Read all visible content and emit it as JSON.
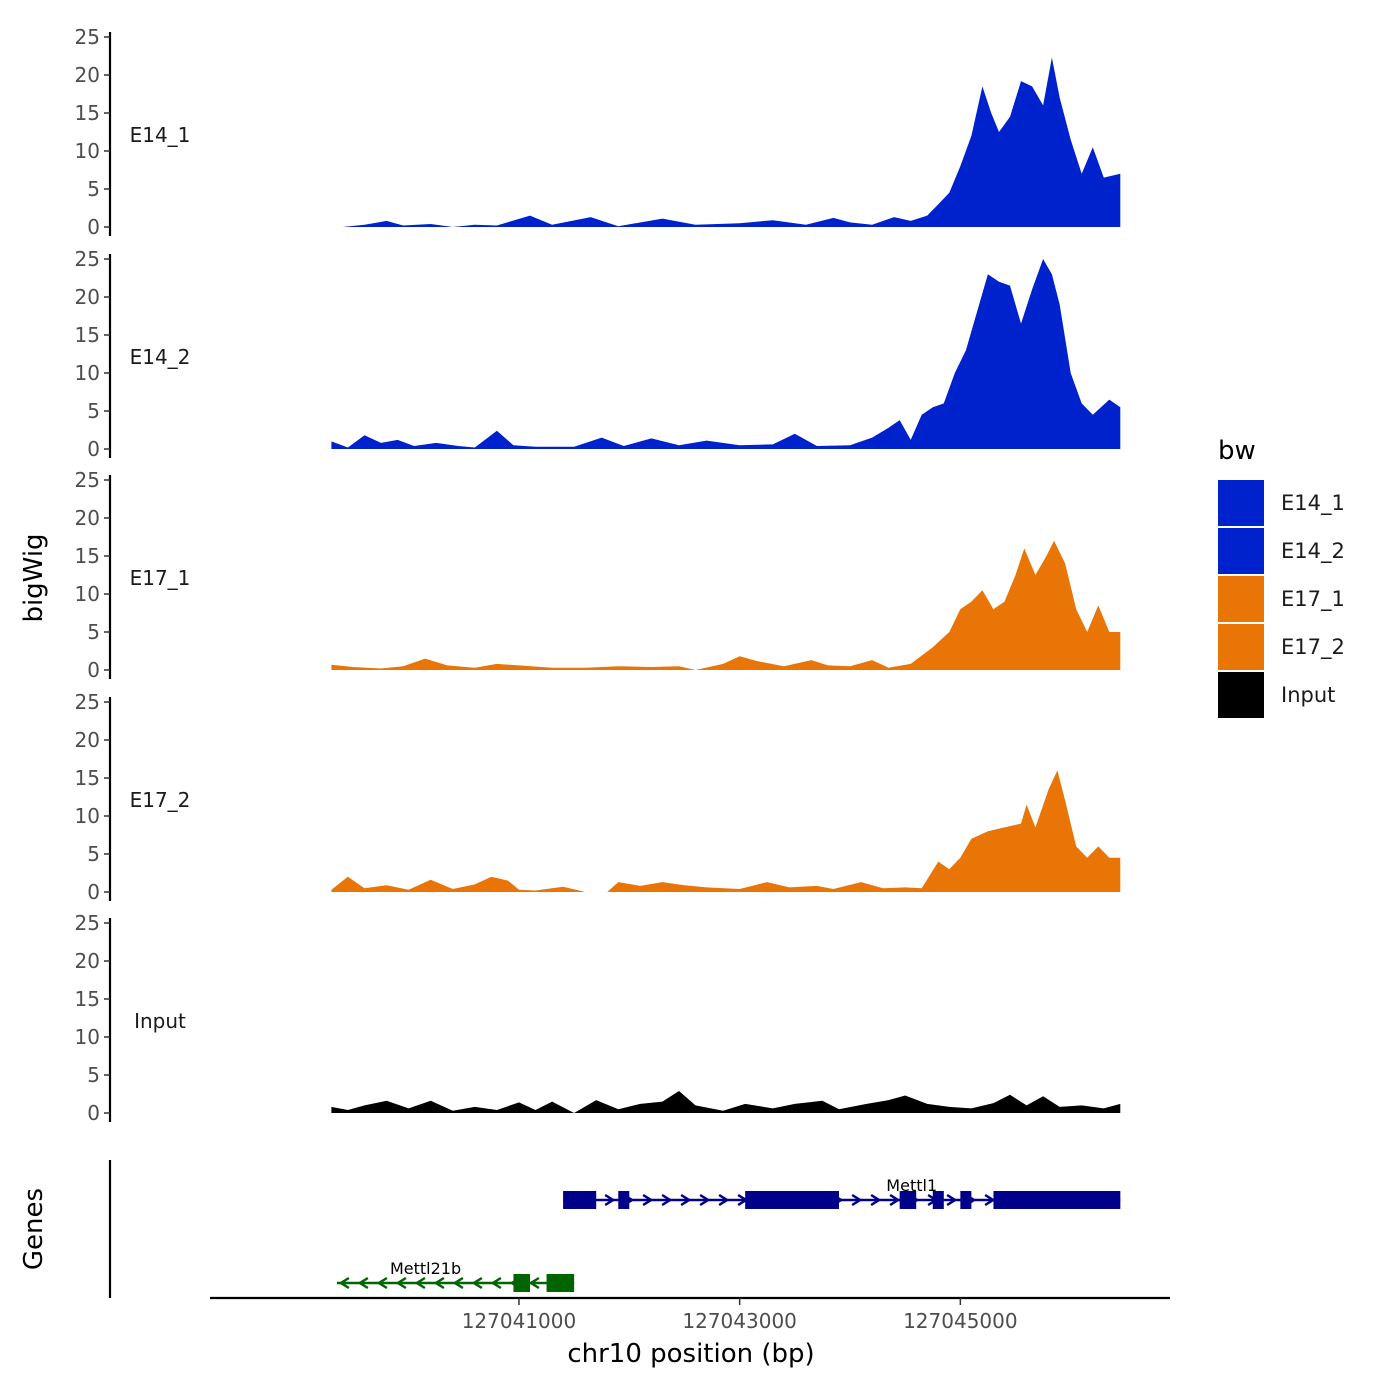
{
  "chart_data": {
    "type": "area",
    "title": "",
    "xlabel": "chr10 position (bp)",
    "ylabel": "bigWig",
    "genes_label": "Genes",
    "xlim": [
      127038200,
      127046900
    ],
    "x_ticks": [
      127041000,
      127043000,
      127045000
    ],
    "x_tick_labels": [
      "127041000",
      "127043000",
      "127045000"
    ],
    "ylim": [
      0,
      25
    ],
    "y_ticks": [
      0,
      5,
      10,
      15,
      20,
      25
    ],
    "y_tick_labels": [
      "0",
      "5",
      "10",
      "15",
      "20",
      "25"
    ],
    "legend": {
      "title": "bw",
      "position": "right",
      "entries": [
        {
          "label": "E14_1",
          "color": "#0022CC"
        },
        {
          "label": "E14_2",
          "color": "#0022CC"
        },
        {
          "label": "E17_1",
          "color": "#E87506"
        },
        {
          "label": "E17_2",
          "color": "#E87506"
        },
        {
          "label": "Input",
          "color": "#000000"
        }
      ]
    },
    "series": [
      {
        "name": "E14_1",
        "color": "#0022CC",
        "points": [
          [
            127039400,
            0
          ],
          [
            127039600,
            0.3
          ],
          [
            127039800,
            0.8
          ],
          [
            127039950,
            0.2
          ],
          [
            127040200,
            0.4
          ],
          [
            127040400,
            0
          ],
          [
            127040600,
            0.3
          ],
          [
            127040800,
            0.2
          ],
          [
            127041100,
            1.5
          ],
          [
            127041300,
            0.3
          ],
          [
            127041650,
            1.3
          ],
          [
            127041900,
            0.1
          ],
          [
            127042300,
            1.1
          ],
          [
            127042600,
            0.3
          ],
          [
            127043000,
            0.5
          ],
          [
            127043300,
            0.9
          ],
          [
            127043600,
            0.3
          ],
          [
            127043850,
            1.2
          ],
          [
            127044000,
            0.6
          ],
          [
            127044200,
            0.3
          ],
          [
            127044400,
            1.3
          ],
          [
            127044550,
            0.8
          ],
          [
            127044700,
            1.5
          ],
          [
            127044800,
            3
          ],
          [
            127044900,
            4.5
          ],
          [
            127045000,
            8
          ],
          [
            127045100,
            12
          ],
          [
            127045200,
            18.5
          ],
          [
            127045280,
            15
          ],
          [
            127045350,
            12.5
          ],
          [
            127045450,
            14.5
          ],
          [
            127045550,
            19.2
          ],
          [
            127045650,
            18.5
          ],
          [
            127045750,
            16
          ],
          [
            127045830,
            22.3
          ],
          [
            127045900,
            17
          ],
          [
            127046000,
            11.5
          ],
          [
            127046100,
            7
          ],
          [
            127046200,
            10.5
          ],
          [
            127046300,
            6.5
          ],
          [
            127046450,
            7
          ]
        ]
      },
      {
        "name": "E14_2",
        "color": "#0022CC",
        "points": [
          [
            127039300,
            1
          ],
          [
            127039450,
            0.2
          ],
          [
            127039600,
            1.8
          ],
          [
            127039750,
            0.8
          ],
          [
            127039900,
            1.2
          ],
          [
            127040050,
            0.4
          ],
          [
            127040250,
            0.8
          ],
          [
            127040450,
            0.4
          ],
          [
            127040600,
            0.2
          ],
          [
            127040800,
            2.4
          ],
          [
            127040950,
            0.5
          ],
          [
            127041150,
            0.3
          ],
          [
            127041500,
            0.3
          ],
          [
            127041750,
            1.5
          ],
          [
            127041950,
            0.4
          ],
          [
            127042200,
            1.4
          ],
          [
            127042450,
            0.5
          ],
          [
            127042700,
            1.1
          ],
          [
            127043000,
            0.5
          ],
          [
            127043300,
            0.6
          ],
          [
            127043500,
            2
          ],
          [
            127043700,
            0.4
          ],
          [
            127044000,
            0.5
          ],
          [
            127044200,
            1.5
          ],
          [
            127044350,
            2.8
          ],
          [
            127044450,
            3.8
          ],
          [
            127044550,
            1.2
          ],
          [
            127044650,
            4.5
          ],
          [
            127044750,
            5.5
          ],
          [
            127044850,
            6
          ],
          [
            127044950,
            10
          ],
          [
            127045050,
            13
          ],
          [
            127045150,
            18
          ],
          [
            127045250,
            23
          ],
          [
            127045350,
            22
          ],
          [
            127045450,
            21.5
          ],
          [
            127045550,
            16.5
          ],
          [
            127045650,
            21
          ],
          [
            127045750,
            25
          ],
          [
            127045830,
            23
          ],
          [
            127045900,
            19
          ],
          [
            127046000,
            10
          ],
          [
            127046100,
            6
          ],
          [
            127046200,
            4.5
          ],
          [
            127046350,
            6.5
          ],
          [
            127046450,
            5.5
          ]
        ]
      },
      {
        "name": "E17_1",
        "color": "#E87506",
        "points": [
          [
            127039300,
            0.7
          ],
          [
            127039500,
            0.4
          ],
          [
            127039750,
            0.2
          ],
          [
            127039950,
            0.5
          ],
          [
            127040150,
            1.5
          ],
          [
            127040350,
            0.6
          ],
          [
            127040600,
            0.3
          ],
          [
            127040800,
            0.8
          ],
          [
            127041000,
            0.6
          ],
          [
            127041300,
            0.3
          ],
          [
            127041600,
            0.3
          ],
          [
            127041900,
            0.5
          ],
          [
            127042200,
            0.4
          ],
          [
            127042450,
            0.5
          ],
          [
            127042600,
            0
          ],
          [
            127042850,
            0.8
          ],
          [
            127043000,
            1.8
          ],
          [
            127043150,
            1.2
          ],
          [
            127043400,
            0.5
          ],
          [
            127043650,
            1.3
          ],
          [
            127043800,
            0.6
          ],
          [
            127044000,
            0.5
          ],
          [
            127044200,
            1.3
          ],
          [
            127044350,
            0.3
          ],
          [
            127044550,
            0.8
          ],
          [
            127044750,
            3
          ],
          [
            127044900,
            5
          ],
          [
            127045000,
            8
          ],
          [
            127045100,
            9
          ],
          [
            127045200,
            10.5
          ],
          [
            127045300,
            8
          ],
          [
            127045400,
            9
          ],
          [
            127045500,
            12.5
          ],
          [
            127045580,
            16
          ],
          [
            127045680,
            12.5
          ],
          [
            127045780,
            15
          ],
          [
            127045850,
            17
          ],
          [
            127045950,
            14
          ],
          [
            127046050,
            8
          ],
          [
            127046150,
            5
          ],
          [
            127046250,
            8.5
          ],
          [
            127046350,
            5
          ],
          [
            127046450,
            5
          ]
        ]
      },
      {
        "name": "E17_2",
        "color": "#E87506",
        "points": [
          [
            127039300,
            0.3
          ],
          [
            127039450,
            2
          ],
          [
            127039600,
            0.5
          ],
          [
            127039800,
            0.9
          ],
          [
            127040000,
            0.3
          ],
          [
            127040200,
            1.6
          ],
          [
            127040400,
            0.4
          ],
          [
            127040600,
            1
          ],
          [
            127040750,
            2
          ],
          [
            127040900,
            1.5
          ],
          [
            127041000,
            0.3
          ],
          [
            127041150,
            0.2
          ],
          [
            127041400,
            0.7
          ],
          [
            127041600,
            0
          ],
          [
            127041800,
            0
          ],
          [
            127041900,
            1.3
          ],
          [
            127042100,
            0.8
          ],
          [
            127042300,
            1.3
          ],
          [
            127042500,
            0.9
          ],
          [
            127042700,
            0.6
          ],
          [
            127043000,
            0.4
          ],
          [
            127043250,
            1.3
          ],
          [
            127043450,
            0.6
          ],
          [
            127043700,
            0.8
          ],
          [
            127043850,
            0.4
          ],
          [
            127044100,
            1.3
          ],
          [
            127044300,
            0.5
          ],
          [
            127044500,
            0.6
          ],
          [
            127044650,
            0.5
          ],
          [
            127044800,
            4
          ],
          [
            127044900,
            3
          ],
          [
            127045000,
            4.5
          ],
          [
            127045100,
            7
          ],
          [
            127045250,
            8
          ],
          [
            127045400,
            8.5
          ],
          [
            127045550,
            9
          ],
          [
            127045600,
            11.5
          ],
          [
            127045680,
            8.5
          ],
          [
            127045800,
            13.5
          ],
          [
            127045880,
            16
          ],
          [
            127045950,
            12
          ],
          [
            127046050,
            6
          ],
          [
            127046150,
            4.5
          ],
          [
            127046250,
            6
          ],
          [
            127046350,
            4.5
          ],
          [
            127046450,
            4.5
          ]
        ]
      },
      {
        "name": "Input",
        "color": "#000000",
        "points": [
          [
            127039300,
            0.8
          ],
          [
            127039450,
            0.4
          ],
          [
            127039600,
            1
          ],
          [
            127039800,
            1.6
          ],
          [
            127040000,
            0.6
          ],
          [
            127040200,
            1.6
          ],
          [
            127040400,
            0.3
          ],
          [
            127040600,
            0.8
          ],
          [
            127040800,
            0.4
          ],
          [
            127041000,
            1.4
          ],
          [
            127041150,
            0.4
          ],
          [
            127041300,
            1.5
          ],
          [
            127041500,
            0
          ],
          [
            127041700,
            1.7
          ],
          [
            127041900,
            0.5
          ],
          [
            127042100,
            1.2
          ],
          [
            127042300,
            1.5
          ],
          [
            127042450,
            2.9
          ],
          [
            127042600,
            1
          ],
          [
            127042850,
            0.3
          ],
          [
            127043050,
            1.2
          ],
          [
            127043300,
            0.6
          ],
          [
            127043500,
            1.2
          ],
          [
            127043750,
            1.6
          ],
          [
            127043900,
            0.5
          ],
          [
            127044150,
            1.2
          ],
          [
            127044350,
            1.7
          ],
          [
            127044500,
            2.3
          ],
          [
            127044700,
            1.2
          ],
          [
            127044900,
            0.8
          ],
          [
            127045100,
            0.6
          ],
          [
            127045300,
            1.3
          ],
          [
            127045450,
            2.4
          ],
          [
            127045600,
            1
          ],
          [
            127045750,
            2.2
          ],
          [
            127045900,
            0.8
          ],
          [
            127046100,
            1
          ],
          [
            127046300,
            0.6
          ],
          [
            127046450,
            1.2
          ]
        ]
      }
    ],
    "genes": [
      {
        "name": "Mettl1",
        "strand": "+",
        "color": "#00008B",
        "start": 127041400,
        "end": 127046450,
        "exons": [
          [
            127041400,
            127041700
          ],
          [
            127041900,
            127042000
          ],
          [
            127043050,
            127043900
          ],
          [
            127044450,
            127044600
          ],
          [
            127044750,
            127044850
          ],
          [
            127045000,
            127045100
          ],
          [
            127045300,
            127046450
          ]
        ]
      },
      {
        "name": "Mettl21b",
        "strand": "-",
        "color": "#006400",
        "start": 127039350,
        "end": 127041500,
        "exons": [
          [
            127040950,
            127041100
          ],
          [
            127041250,
            127041500
          ]
        ]
      }
    ]
  }
}
